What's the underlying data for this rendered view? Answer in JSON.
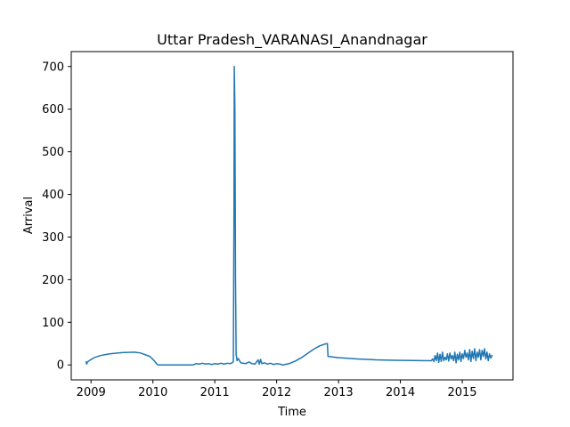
{
  "chart_data": {
    "type": "line",
    "title": "Uttar Pradesh_VARANASI_Anandnagar",
    "xlabel": "Time",
    "ylabel": "Arrival",
    "xlim": [
      2008.68,
      2015.82
    ],
    "ylim": [
      -35,
      735
    ],
    "grid": false,
    "x_ticks": [
      {
        "value": 2009,
        "label": "2009"
      },
      {
        "value": 2010,
        "label": "2010"
      },
      {
        "value": 2011,
        "label": "2011"
      },
      {
        "value": 2012,
        "label": "2012"
      },
      {
        "value": 2013,
        "label": "2013"
      },
      {
        "value": 2014,
        "label": "2014"
      },
      {
        "value": 2015,
        "label": "2015"
      }
    ],
    "y_ticks": [
      {
        "value": 0,
        "label": "0"
      },
      {
        "value": 100,
        "label": "100"
      },
      {
        "value": 200,
        "label": "200"
      },
      {
        "value": 300,
        "label": "300"
      },
      {
        "value": 400,
        "label": "400"
      },
      {
        "value": 500,
        "label": "500"
      },
      {
        "value": 600,
        "label": "600"
      },
      {
        "value": 700,
        "label": "700"
      }
    ],
    "series": [
      {
        "name": "Arrival",
        "color": "#1f77b4",
        "points": [
          [
            2008.92,
            7
          ],
          [
            2008.93,
            2
          ],
          [
            2008.94,
            6
          ],
          [
            2008.96,
            9
          ],
          [
            2009.05,
            17
          ],
          [
            2009.15,
            22
          ],
          [
            2009.3,
            26
          ],
          [
            2009.5,
            29
          ],
          [
            2009.7,
            30
          ],
          [
            2009.8,
            28
          ],
          [
            2009.95,
            20
          ],
          [
            2010.02,
            10
          ],
          [
            2010.07,
            1
          ],
          [
            2010.1,
            0
          ],
          [
            2010.3,
            0
          ],
          [
            2010.5,
            0
          ],
          [
            2010.65,
            0
          ],
          [
            2010.68,
            2
          ],
          [
            2010.7,
            3
          ],
          [
            2010.75,
            2
          ],
          [
            2010.8,
            4
          ],
          [
            2010.85,
            2
          ],
          [
            2010.9,
            3
          ],
          [
            2010.95,
            1
          ],
          [
            2011.0,
            3
          ],
          [
            2011.05,
            2
          ],
          [
            2011.1,
            4
          ],
          [
            2011.15,
            2
          ],
          [
            2011.2,
            4
          ],
          [
            2011.25,
            3
          ],
          [
            2011.28,
            5
          ],
          [
            2011.3,
            8
          ],
          [
            2011.31,
            350
          ],
          [
            2011.315,
            700
          ],
          [
            2011.325,
            600
          ],
          [
            2011.335,
            200
          ],
          [
            2011.345,
            25
          ],
          [
            2011.36,
            10
          ],
          [
            2011.38,
            15
          ],
          [
            2011.42,
            5
          ],
          [
            2011.5,
            3
          ],
          [
            2011.55,
            7
          ],
          [
            2011.6,
            3
          ],
          [
            2011.65,
            2
          ],
          [
            2011.7,
            12
          ],
          [
            2011.72,
            2
          ],
          [
            2011.74,
            13
          ],
          [
            2011.76,
            3
          ],
          [
            2011.8,
            5
          ],
          [
            2011.85,
            2
          ],
          [
            2011.9,
            4
          ],
          [
            2011.95,
            1
          ],
          [
            2012.0,
            3
          ],
          [
            2012.05,
            2
          ],
          [
            2012.1,
            0
          ],
          [
            2012.2,
            3
          ],
          [
            2012.3,
            9
          ],
          [
            2012.4,
            17
          ],
          [
            2012.5,
            27
          ],
          [
            2012.6,
            37
          ],
          [
            2012.7,
            45
          ],
          [
            2012.78,
            49
          ],
          [
            2012.82,
            50
          ],
          [
            2012.83,
            20
          ],
          [
            2013.0,
            17
          ],
          [
            2013.3,
            14
          ],
          [
            2013.6,
            12
          ],
          [
            2013.9,
            11
          ],
          [
            2014.2,
            10.5
          ],
          [
            2014.5,
            10
          ],
          [
            2014.52,
            14
          ],
          [
            2014.54,
            8
          ],
          [
            2014.56,
            22
          ],
          [
            2014.58,
            10
          ],
          [
            2014.6,
            28
          ],
          [
            2014.62,
            6
          ],
          [
            2014.64,
            25
          ],
          [
            2014.66,
            8
          ],
          [
            2014.68,
            30
          ],
          [
            2014.7,
            10
          ],
          [
            2014.72,
            18
          ],
          [
            2014.74,
            12
          ],
          [
            2014.76,
            26
          ],
          [
            2014.78,
            9
          ],
          [
            2014.8,
            28
          ],
          [
            2014.82,
            14
          ],
          [
            2014.84,
            22
          ],
          [
            2014.86,
            10
          ],
          [
            2014.88,
            30
          ],
          [
            2014.9,
            5
          ],
          [
            2014.92,
            25
          ],
          [
            2014.94,
            12
          ],
          [
            2014.96,
            30
          ],
          [
            2014.98,
            8
          ],
          [
            2015.0,
            26
          ],
          [
            2015.02,
            15
          ],
          [
            2015.04,
            34
          ],
          [
            2015.06,
            18
          ],
          [
            2015.08,
            28
          ],
          [
            2015.1,
            12
          ],
          [
            2015.12,
            36
          ],
          [
            2015.14,
            8
          ],
          [
            2015.16,
            32
          ],
          [
            2015.18,
            15
          ],
          [
            2015.2,
            38
          ],
          [
            2015.22,
            10
          ],
          [
            2015.24,
            30
          ],
          [
            2015.26,
            18
          ],
          [
            2015.28,
            36
          ],
          [
            2015.3,
            12
          ],
          [
            2015.32,
            34
          ],
          [
            2015.34,
            20
          ],
          [
            2015.36,
            38
          ],
          [
            2015.38,
            14
          ],
          [
            2015.4,
            30
          ],
          [
            2015.42,
            10
          ],
          [
            2015.44,
            26
          ],
          [
            2015.46,
            16
          ],
          [
            2015.48,
            22
          ]
        ]
      }
    ]
  }
}
